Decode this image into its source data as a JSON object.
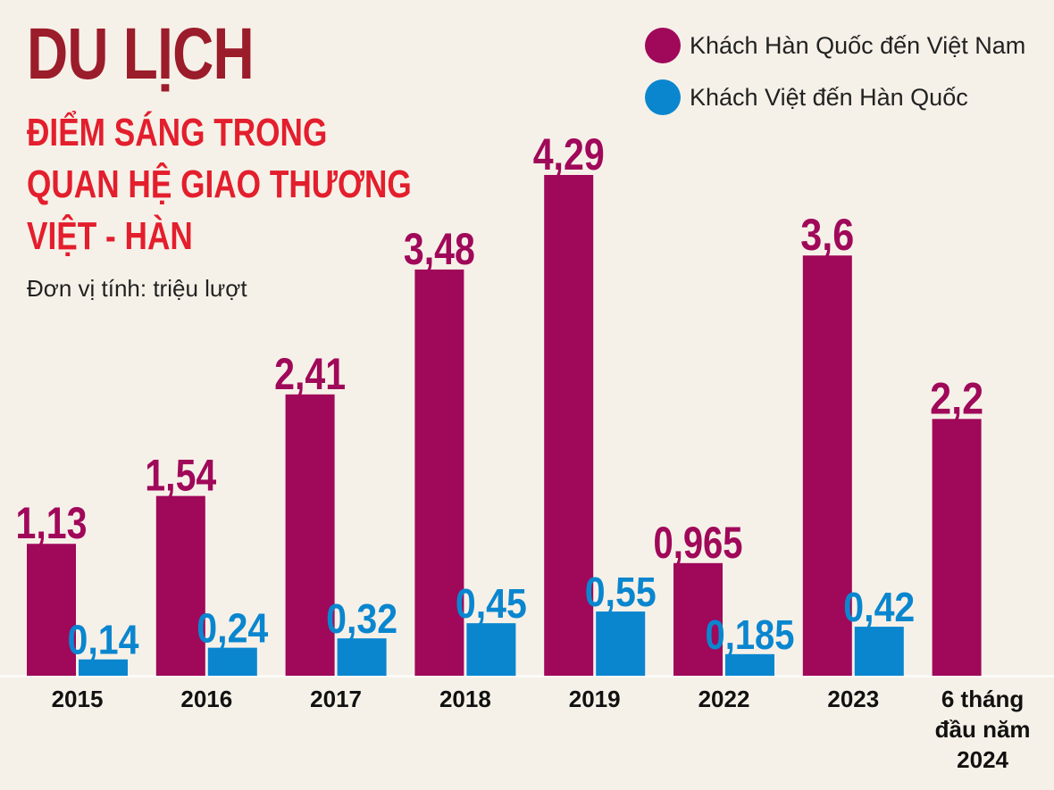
{
  "header": {
    "title": "DU LỊCH",
    "subtitle_lines": [
      "ĐIỂM SÁNG TRONG",
      "QUAN HỆ GIAO THƯƠNG",
      "VIỆT - HÀN"
    ],
    "unit": "Đơn vị tính: triệu lượt"
  },
  "colors": {
    "title": "#9b1c2a",
    "subtitle": "#e31e2d",
    "series_korea_to_vn": "#a0085a",
    "series_vn_to_korea": "#0a86cf"
  },
  "chart_data": {
    "type": "bar",
    "title": "DU LỊCH",
    "subtitle": "ĐIỂM SÁNG TRONG QUAN HỆ GIAO THƯƠNG VIỆT - HÀN",
    "ylabel": "Đơn vị tính: triệu lượt",
    "xlabel": "",
    "categories": [
      "2015",
      "2016",
      "2017",
      "2018",
      "2019",
      "2022",
      "2023",
      "6 tháng đầu năm 2024"
    ],
    "category_lines": [
      [
        "2015"
      ],
      [
        "2016"
      ],
      [
        "2017"
      ],
      [
        "2018"
      ],
      [
        "2019"
      ],
      [
        "2022"
      ],
      [
        "2023"
      ],
      [
        "6 tháng",
        "đầu năm",
        "2024"
      ]
    ],
    "series": [
      {
        "name": "Khách Hàn Quốc đến Việt Nam",
        "values": [
          1.13,
          1.54,
          2.41,
          3.48,
          4.29,
          0.965,
          3.6,
          2.2
        ],
        "labels": [
          "1,13",
          "1,54",
          "2,41",
          "3,48",
          "4,29",
          "0,965",
          "3,6",
          "2,2"
        ]
      },
      {
        "name": "Khách Việt đến Hàn Quốc",
        "values": [
          0.14,
          0.24,
          0.32,
          0.45,
          0.55,
          0.185,
          0.42,
          null
        ],
        "labels": [
          "0,14",
          "0,24",
          "0,32",
          "0,45",
          "0,55",
          "0,185",
          "0,42",
          ""
        ]
      }
    ],
    "ylim": [
      0,
      4.5
    ],
    "grid": false,
    "legend_position": "top-right"
  }
}
